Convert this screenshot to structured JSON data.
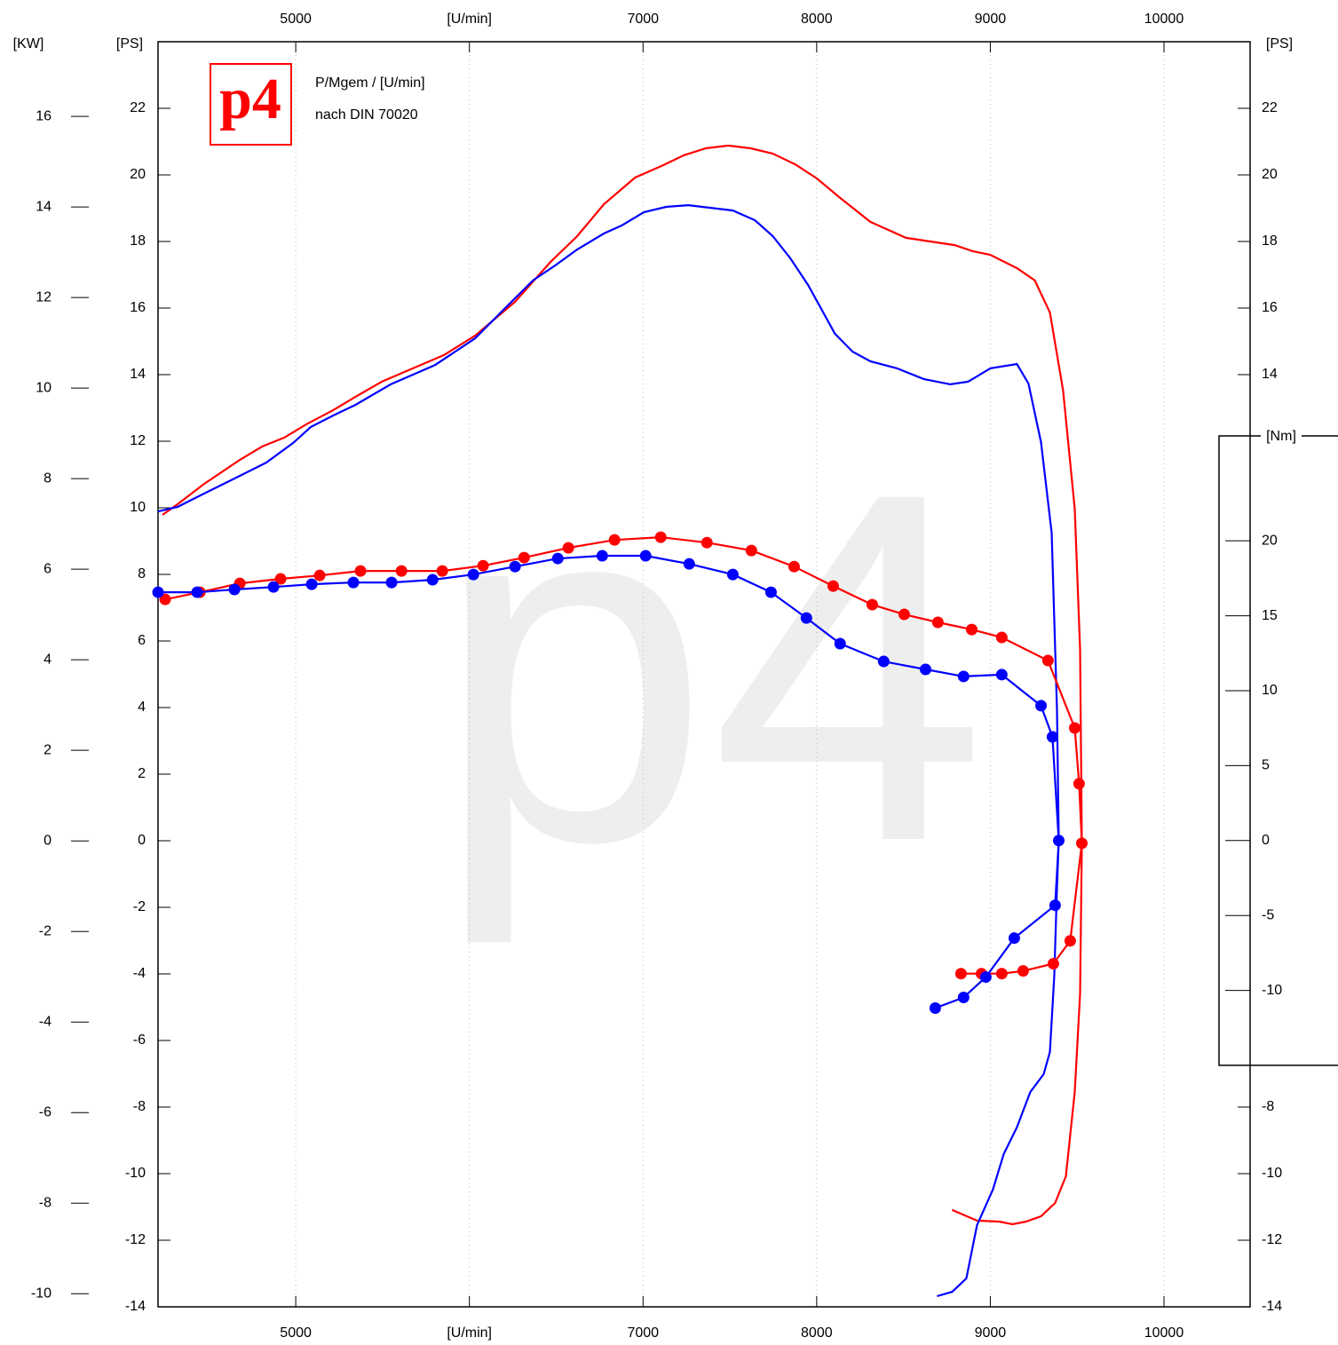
{
  "chart_data": {
    "type": "line",
    "title": "P/Mgem / [U/min]",
    "subtitle": "nach DIN 70020",
    "logo": "p4",
    "watermark": "p4",
    "grid": true,
    "xlim": [
      4207,
      10496
    ],
    "xticks": [
      5000,
      {
        "value": 6000,
        "label": "[U/min]"
      },
      7000,
      8000,
      9000,
      10000
    ],
    "ylabel": "[PS]",
    "y_right_label": "[PS]",
    "ylim": [
      -14,
      24
    ],
    "yticks": [
      -14,
      -12,
      -10,
      -8,
      -6,
      -4,
      -2,
      0,
      2,
      4,
      6,
      8,
      10,
      12,
      14,
      16,
      18,
      20,
      22
    ],
    "kw_axis": {
      "label": "[KW]",
      "lim": [
        -10.29,
        17.65
      ],
      "ticks": [
        -10,
        -8,
        -6,
        -4,
        -2,
        0,
        2,
        4,
        6,
        8,
        10,
        12,
        14,
        16
      ]
    },
    "nm_axis": {
      "label": "[Nm]",
      "lim": [
        -15,
        27
      ],
      "ticks": [
        -10,
        -5,
        0,
        5,
        10,
        15,
        20
      ]
    },
    "series": [
      {
        "color": "#ff0000",
        "axis": "ps",
        "markers": false,
        "x": [
          4233,
          4320,
          4473,
          4678,
          4806,
          4934,
          5061,
          5215,
          5343,
          5496,
          5675,
          5854,
          6033,
          6263,
          6468,
          6621,
          6775,
          6954,
          7107,
          7235,
          7363,
          7491,
          7619,
          7747,
          7875,
          8002,
          8130,
          8309,
          8514,
          8795,
          8898,
          9000,
          9153,
          9256,
          9343,
          9419,
          9486,
          9517,
          9527,
          9517,
          9486,
          9435,
          9373,
          9292,
          9205,
          9128,
          9051,
          8923,
          8780
        ],
        "values": [
          9.79,
          10.11,
          10.72,
          11.44,
          11.84,
          12.11,
          12.51,
          12.93,
          13.33,
          13.79,
          14.19,
          14.59,
          15.17,
          16.19,
          17.39,
          18.16,
          19.12,
          19.92,
          20.27,
          20.59,
          20.8,
          20.88,
          20.8,
          20.64,
          20.32,
          19.89,
          19.33,
          18.59,
          18.11,
          17.89,
          17.71,
          17.6,
          17.2,
          16.83,
          15.87,
          13.52,
          9.97,
          5.76,
          -0.08,
          -4.61,
          -7.55,
          -10.08,
          -10.88,
          -11.28,
          -11.44,
          -11.52,
          -11.44,
          -11.41,
          -11.09
        ]
      },
      {
        "color": "#0000ff",
        "axis": "ps",
        "markers": false,
        "x": [
          4207,
          4320,
          4473,
          4678,
          4831,
          4985,
          5087,
          5215,
          5343,
          5547,
          5803,
          6033,
          6212,
          6366,
          6494,
          6621,
          6775,
          6877,
          7005,
          7133,
          7261,
          7389,
          7517,
          7644,
          7747,
          7849,
          7951,
          8105,
          8207,
          8309,
          8463,
          8616,
          8770,
          8872,
          9000,
          9153,
          9220,
          9292,
          9353,
          9384,
          9394,
          9384,
          9368,
          9343,
          9307,
          9230,
          9153,
          9077,
          9015,
          8923,
          8862,
          8780,
          8693
        ],
        "values": [
          9.89,
          10.03,
          10.43,
          10.96,
          11.36,
          11.95,
          12.43,
          12.77,
          13.09,
          13.71,
          14.29,
          15.09,
          16.03,
          16.83,
          17.28,
          17.76,
          18.24,
          18.48,
          18.88,
          19.04,
          19.09,
          19.01,
          18.93,
          18.64,
          18.16,
          17.49,
          16.69,
          15.23,
          14.69,
          14.4,
          14.19,
          13.87,
          13.71,
          13.79,
          14.19,
          14.32,
          13.73,
          11.97,
          9.25,
          3.92,
          0,
          -1.41,
          -4.08,
          -6.35,
          -7.01,
          -7.55,
          -8.61,
          -9.41,
          -10.48,
          -11.55,
          -13.15,
          -13.55,
          -13.68
        ]
      },
      {
        "color": "#ff0000",
        "axis": "nm",
        "markers": true,
        "x": [
          4248,
          4448,
          4678,
          4913,
          5138,
          5373,
          5609,
          5844,
          6079,
          6315,
          6570,
          6836,
          7102,
          7368,
          7624,
          7870,
          8095,
          8320,
          8504,
          8698,
          8893,
          9066,
          9332,
          9486,
          9511,
          9527,
          9460,
          9363,
          9189,
          9066,
          8949,
          8831
        ],
        "values": [
          16.09,
          16.57,
          17.16,
          17.46,
          17.69,
          17.99,
          17.99,
          17.99,
          18.34,
          18.88,
          19.53,
          20.06,
          20.24,
          19.88,
          19.35,
          18.28,
          16.98,
          15.74,
          15.09,
          14.56,
          14.08,
          13.55,
          12.01,
          7.51,
          3.79,
          -0.18,
          -6.69,
          -8.22,
          -8.7,
          -8.88,
          -8.88,
          -8.88
        ]
      },
      {
        "color": "#0000ff",
        "axis": "nm",
        "markers": true,
        "x": [
          4207,
          4432,
          4647,
          4872,
          5092,
          5332,
          5552,
          5788,
          6023,
          6263,
          6509,
          6765,
          7015,
          7266,
          7517,
          7737,
          7941,
          8135,
          8386,
          8627,
          8846,
          9066,
          9292,
          9358,
          9394,
          9373,
          9138,
          8974,
          8846,
          8683
        ],
        "values": [
          16.57,
          16.57,
          16.75,
          16.92,
          17.1,
          17.22,
          17.22,
          17.4,
          17.75,
          18.28,
          18.82,
          19.0,
          19.0,
          18.46,
          17.75,
          16.57,
          14.85,
          13.14,
          11.95,
          11.42,
          10.95,
          11.07,
          9.0,
          6.92,
          0,
          -4.32,
          -6.51,
          -9.11,
          -10.47,
          -11.18
        ]
      }
    ]
  }
}
